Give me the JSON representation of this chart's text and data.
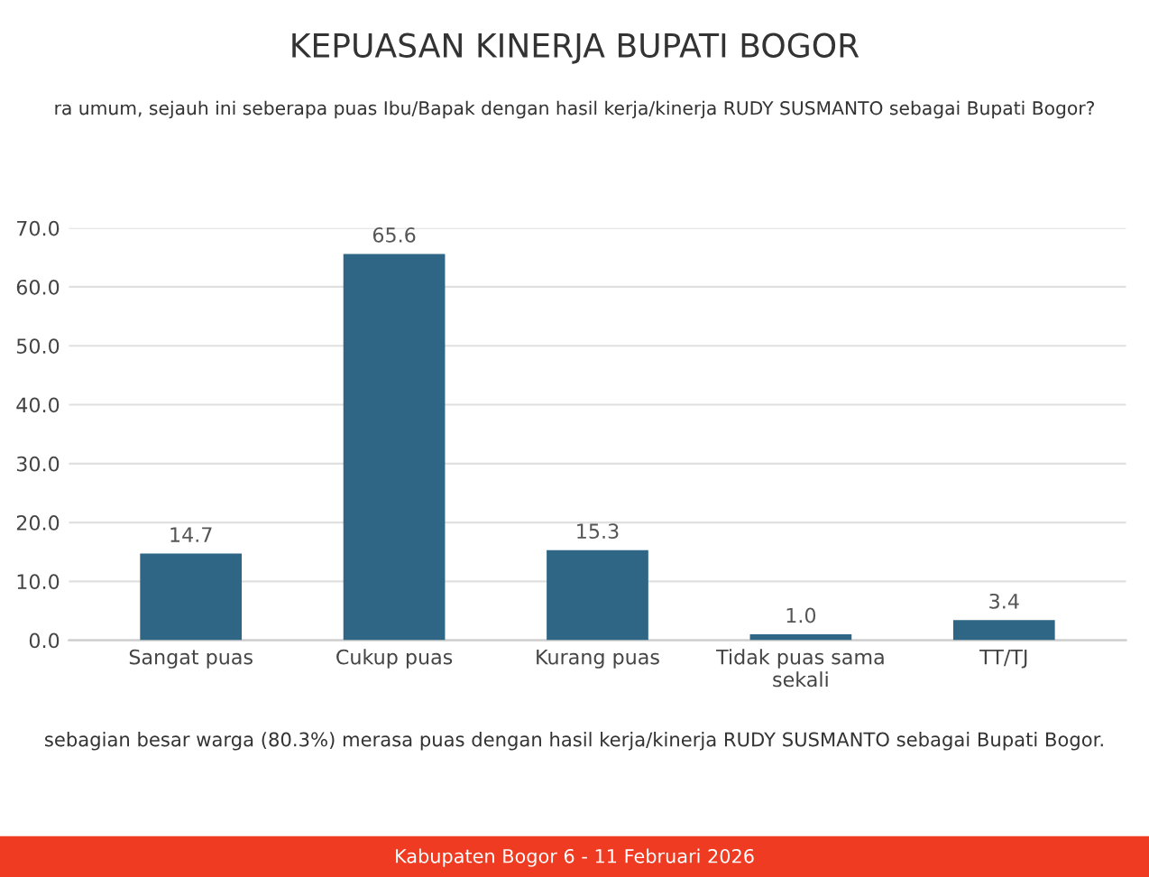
{
  "chart_data": {
    "type": "bar",
    "title": "KEPUASAN KINERJA BUPATI BOGOR",
    "subtitle": "ra umum, sejauh ini seberapa puas Ibu/Bapak dengan hasil kerja/kinerja RUDY SUSMANTO sebagai Bupati Bogor?",
    "categories": [
      "Sangat puas",
      "Cukup puas",
      "Kurang puas",
      "Tidak puas sama\nsekali",
      "TT/TJ"
    ],
    "values": [
      14.7,
      65.6,
      15.3,
      1.0,
      3.4
    ],
    "color": "#2f6585",
    "ylim": [
      0,
      70
    ],
    "yticks": [
      {
        "value": 0,
        "label": "0.0"
      },
      {
        "value": 10,
        "label": "10.0"
      },
      {
        "value": 20,
        "label": "20.0"
      },
      {
        "value": 30,
        "label": "30.0"
      },
      {
        "value": 40,
        "label": "40.0"
      },
      {
        "value": 50,
        "label": "50.0"
      },
      {
        "value": 60,
        "label": "60.0"
      },
      {
        "value": 70,
        "label": "70.0"
      }
    ],
    "value_labels": [
      "14.7",
      "65.6",
      "15.3",
      "1.0",
      "3.4"
    ],
    "grid": "y",
    "annotations": [
      "sebagian besar warga (80.3%) merasa puas dengan hasil kerja/kinerja RUDY SUSMANTO sebagai Bupati Bogor.",
      "Kabupaten Bogor 6 - 11 Februari 2026"
    ]
  }
}
